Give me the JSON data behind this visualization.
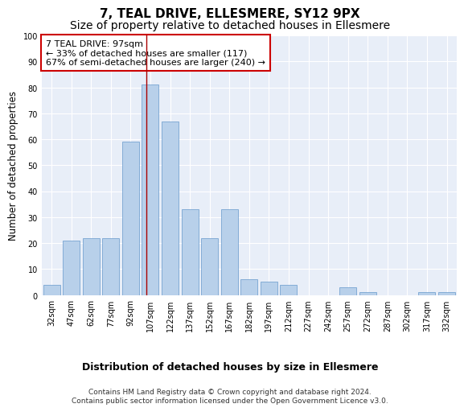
{
  "title": "7, TEAL DRIVE, ELLESMERE, SY12 9PX",
  "subtitle": "Size of property relative to detached houses in Ellesmere",
  "xlabel": "Distribution of detached houses by size in Ellesmere",
  "ylabel": "Number of detached properties",
  "bar_labels": [
    "32sqm",
    "47sqm",
    "62sqm",
    "77sqm",
    "92sqm",
    "107sqm",
    "122sqm",
    "137sqm",
    "152sqm",
    "167sqm",
    "182sqm",
    "197sqm",
    "212sqm",
    "227sqm",
    "242sqm",
    "257sqm",
    "272sqm",
    "287sqm",
    "302sqm",
    "317sqm",
    "332sqm"
  ],
  "bar_values": [
    4,
    21,
    22,
    22,
    59,
    81,
    67,
    33,
    22,
    33,
    6,
    5,
    4,
    0,
    0,
    3,
    1,
    0,
    0,
    1,
    1
  ],
  "bar_color": "#b8d0ea",
  "bar_edge_color": "#6699cc",
  "background_color": "#e8eef8",
  "grid_color": "#ffffff",
  "vline_x_idx": 4.8,
  "vline_color": "#aa0000",
  "annotation_text": "7 TEAL DRIVE: 97sqm\n← 33% of detached houses are smaller (117)\n67% of semi-detached houses are larger (240) →",
  "annotation_box_color": "white",
  "annotation_box_edge": "#cc0000",
  "ylim": [
    0,
    100
  ],
  "yticks": [
    0,
    10,
    20,
    30,
    40,
    50,
    60,
    70,
    80,
    90,
    100
  ],
  "footnote": "Contains HM Land Registry data © Crown copyright and database right 2024.\nContains public sector information licensed under the Open Government Licence v3.0.",
  "title_fontsize": 11,
  "subtitle_fontsize": 10,
  "xlabel_fontsize": 9,
  "ylabel_fontsize": 8.5,
  "tick_fontsize": 7,
  "annotation_fontsize": 8,
  "footnote_fontsize": 6.5
}
